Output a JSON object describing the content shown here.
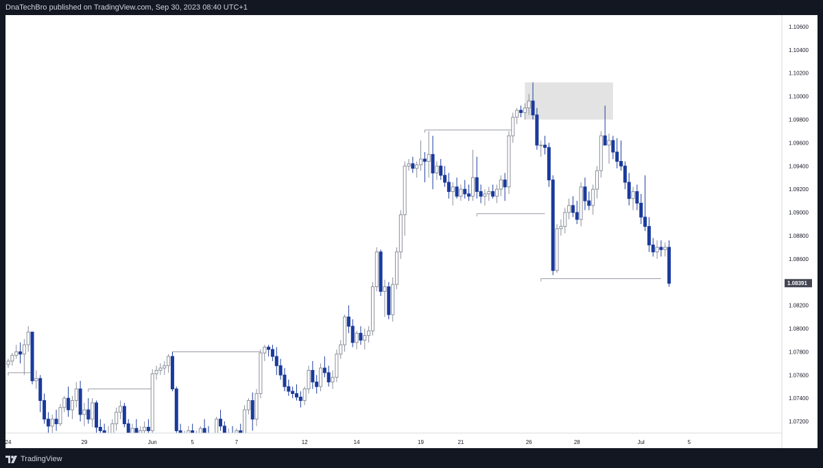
{
  "header": {
    "title": "DnaTechBro published on TradingView.com, Sep 30, 2023 08:40 UTC+1"
  },
  "footer": {
    "brand": "TradingView",
    "brand_icon": "tradingview-logo-icon"
  },
  "colors": {
    "bull_body": "#ffffff",
    "bull_border": "#8a8e99",
    "bear_body": "#1a3a9c",
    "bear_border": "#1a3a9c",
    "level_line": "#9598a1",
    "zone_fill": "#e3e3e3",
    "price_label_bg": "#434651"
  },
  "chart_data": {
    "type": "candlestick",
    "title": "",
    "xlabel": "",
    "ylabel": "",
    "ylim": [
      1.071,
      1.107
    ],
    "grid": false,
    "current_price": "1.08391",
    "y_ticks": [
      "1.10600",
      "1.10400",
      "1.10200",
      "1.10000",
      "1.09800",
      "1.09600",
      "1.09400",
      "1.09200",
      "1.09000",
      "1.08800",
      "1.08600",
      "1.08400",
      "1.08200",
      "1.08000",
      "1.07800",
      "1.07600",
      "1.07400",
      "1.07200"
    ],
    "x_ticks": [
      {
        "label": "24",
        "bar": 0
      },
      {
        "label": "29",
        "bar": 19
      },
      {
        "label": "Jun",
        "bar": 36
      },
      {
        "label": "5",
        "bar": 46
      },
      {
        "label": "7",
        "bar": 57
      },
      {
        "label": "12",
        "bar": 74
      },
      {
        "label": "14",
        "bar": 87
      },
      {
        "label": "19",
        "bar": 103
      },
      {
        "label": "21",
        "bar": 113
      },
      {
        "label": "26",
        "bar": 130
      },
      {
        "label": "28",
        "bar": 142
      },
      {
        "label": "Jul",
        "bar": 158
      },
      {
        "label": "5",
        "bar": 170
      }
    ],
    "candles": [
      [
        1.0769,
        1.0774,
        1.0766,
        1.0772
      ],
      [
        1.0772,
        1.0779,
        1.0768,
        1.0777
      ],
      [
        1.0777,
        1.0786,
        1.0774,
        1.078
      ],
      [
        1.078,
        1.0788,
        1.077,
        1.0778
      ],
      [
        1.0778,
        1.0791,
        1.076,
        1.0786
      ],
      [
        1.0786,
        1.0802,
        1.078,
        1.0797
      ],
      [
        1.0797,
        1.0797,
        1.0752,
        1.0755
      ],
      [
        1.0755,
        1.0764,
        1.0748,
        1.0757
      ],
      [
        1.0757,
        1.076,
        1.0728,
        1.0738
      ],
      [
        1.0738,
        1.0744,
        1.0718,
        1.0722
      ],
      [
        1.0722,
        1.0728,
        1.0708,
        1.0716
      ],
      [
        1.0716,
        1.0726,
        1.071,
        1.0722
      ],
      [
        1.0722,
        1.073,
        1.0712,
        1.0718
      ],
      [
        1.0718,
        1.0735,
        1.0716,
        1.0732
      ],
      [
        1.0732,
        1.0742,
        1.0728,
        1.074
      ],
      [
        1.074,
        1.075,
        1.0724,
        1.073
      ],
      [
        1.073,
        1.0742,
        1.0722,
        1.0738
      ],
      [
        1.0738,
        1.0754,
        1.0732,
        1.0748
      ],
      [
        1.0748,
        1.0755,
        1.072,
        1.0726
      ],
      [
        1.0726,
        1.0736,
        1.0716,
        1.073
      ],
      [
        1.073,
        1.074,
        1.0718,
        1.0722
      ],
      [
        1.0722,
        1.074,
        1.0715,
        1.0736
      ],
      [
        1.0736,
        1.0738,
        1.071,
        1.0715
      ],
      [
        1.0715,
        1.0722,
        1.0705,
        1.0712
      ],
      [
        1.0712,
        1.0718,
        1.07,
        1.0708
      ],
      [
        1.0708,
        1.0716,
        1.0702,
        1.071
      ],
      [
        1.071,
        1.0722,
        1.0706,
        1.0718
      ],
      [
        1.0718,
        1.0732,
        1.0712,
        1.0728
      ],
      [
        1.0728,
        1.0738,
        1.0722,
        1.0733
      ],
      [
        1.0733,
        1.0736,
        1.0715,
        1.0718
      ],
      [
        1.0718,
        1.0722,
        1.0704,
        1.071
      ],
      [
        1.071,
        1.0718,
        1.07,
        1.0714
      ],
      [
        1.0714,
        1.0722,
        1.0706,
        1.0708
      ],
      [
        1.0708,
        1.0716,
        1.07,
        1.0712
      ],
      [
        1.0712,
        1.072,
        1.0704,
        1.0715
      ],
      [
        1.0715,
        1.0722,
        1.0706,
        1.0712
      ],
      [
        1.0712,
        1.0765,
        1.071,
        1.0761
      ],
      [
        1.0761,
        1.0768,
        1.0756,
        1.0764
      ],
      [
        1.0764,
        1.077,
        1.076,
        1.0766
      ],
      [
        1.0766,
        1.0772,
        1.076,
        1.0768
      ],
      [
        1.0768,
        1.0778,
        1.0762,
        1.0776
      ],
      [
        1.0776,
        1.078,
        1.0746,
        1.0748
      ],
      [
        1.0748,
        1.075,
        1.0708,
        1.0712
      ],
      [
        1.0712,
        1.0718,
        1.069,
        1.07
      ],
      [
        1.07,
        1.0712,
        1.0694,
        1.0708
      ],
      [
        1.0708,
        1.0716,
        1.07,
        1.0712
      ],
      [
        1.0712,
        1.0718,
        1.07,
        1.0704
      ],
      [
        1.0704,
        1.0712,
        1.069,
        1.0706
      ],
      [
        1.0706,
        1.0716,
        1.07,
        1.0714
      ],
      [
        1.0714,
        1.0722,
        1.0706,
        1.071
      ],
      [
        1.071,
        1.0716,
        1.0698,
        1.0702
      ],
      [
        1.0702,
        1.071,
        1.0692,
        1.0708
      ],
      [
        1.0708,
        1.0724,
        1.0706,
        1.0722
      ],
      [
        1.0722,
        1.073,
        1.0712,
        1.0716
      ],
      [
        1.0716,
        1.072,
        1.0702,
        1.0706
      ],
      [
        1.0706,
        1.0714,
        1.0696,
        1.071
      ],
      [
        1.071,
        1.0716,
        1.07,
        1.0704
      ],
      [
        1.0704,
        1.0714,
        1.0696,
        1.0712
      ],
      [
        1.0712,
        1.0718,
        1.0702,
        1.0708
      ],
      [
        1.0708,
        1.0734,
        1.0706,
        1.073
      ],
      [
        1.073,
        1.074,
        1.0726,
        1.0738
      ],
      [
        1.0738,
        1.0745,
        1.0712,
        1.0722
      ],
      [
        1.0722,
        1.0748,
        1.0716,
        1.0744
      ],
      [
        1.0744,
        1.0782,
        1.074,
        1.0779
      ],
      [
        1.0779,
        1.0786,
        1.0772,
        1.0784
      ],
      [
        1.0784,
        1.0786,
        1.0776,
        1.0782
      ],
      [
        1.0782,
        1.0786,
        1.0772,
        1.0776
      ],
      [
        1.0776,
        1.0784,
        1.076,
        1.0768
      ],
      [
        1.0768,
        1.0774,
        1.0756,
        1.076
      ],
      [
        1.076,
        1.0766,
        1.0746,
        1.075
      ],
      [
        1.075,
        1.0756,
        1.0742,
        1.0746
      ],
      [
        1.0746,
        1.075,
        1.074,
        1.0744
      ],
      [
        1.0744,
        1.0752,
        1.0738,
        1.0741
      ],
      [
        1.0741,
        1.0746,
        1.0732,
        1.0738
      ],
      [
        1.0738,
        1.075,
        1.0734,
        1.0748
      ],
      [
        1.0748,
        1.0768,
        1.0744,
        1.0764
      ],
      [
        1.0764,
        1.0772,
        1.0748,
        1.0754
      ],
      [
        1.0754,
        1.076,
        1.0744,
        1.075
      ],
      [
        1.075,
        1.077,
        1.0746,
        1.0766
      ],
      [
        1.0766,
        1.0776,
        1.0758,
        1.0762
      ],
      [
        1.0762,
        1.0768,
        1.075,
        1.0754
      ],
      [
        1.0754,
        1.0764,
        1.0748,
        1.0758
      ],
      [
        1.0758,
        1.0782,
        1.0754,
        1.0778
      ],
      [
        1.0778,
        1.079,
        1.0774,
        1.0786
      ],
      [
        1.0786,
        1.0812,
        1.078,
        1.081
      ],
      [
        1.081,
        1.082,
        1.0796,
        1.0802
      ],
      [
        1.0802,
        1.0808,
        1.0784,
        1.0788
      ],
      [
        1.0788,
        1.0798,
        1.0782,
        1.0796
      ],
      [
        1.0796,
        1.0802,
        1.0786,
        1.079
      ],
      [
        1.079,
        1.08,
        1.0782,
        1.0794
      ],
      [
        1.0794,
        1.0802,
        1.0788,
        1.0798
      ],
      [
        1.0798,
        1.084,
        1.0794,
        1.0836
      ],
      [
        1.0836,
        1.087,
        1.0832,
        1.0866
      ],
      [
        1.0866,
        1.0868,
        1.0828,
        1.0832
      ],
      [
        1.0832,
        1.0842,
        1.081,
        1.0836
      ],
      [
        1.0836,
        1.084,
        1.0808,
        1.0812
      ],
      [
        1.0812,
        1.0844,
        1.0806,
        1.0838
      ],
      [
        1.0838,
        1.087,
        1.0834,
        1.0866
      ],
      [
        1.0866,
        1.0902,
        1.086,
        1.0898
      ],
      [
        1.0898,
        1.0944,
        1.088,
        1.094
      ],
      [
        1.094,
        1.0946,
        1.0936,
        1.0942
      ],
      [
        1.0942,
        1.0948,
        1.0934,
        1.0938
      ],
      [
        1.0938,
        1.0944,
        1.093,
        1.0941
      ],
      [
        1.0941,
        1.0962,
        1.0936,
        1.0946
      ],
      [
        1.0946,
        1.0952,
        1.0926,
        1.0944
      ],
      [
        1.0944,
        1.097,
        1.093,
        1.095
      ],
      [
        1.095,
        1.0966,
        1.092,
        1.0934
      ],
      [
        1.0934,
        1.0944,
        1.0928,
        1.094
      ],
      [
        1.094,
        1.0946,
        1.0928,
        1.0932
      ],
      [
        1.0932,
        1.094,
        1.0922,
        1.0926
      ],
      [
        1.0926,
        1.0934,
        1.0912,
        1.0918
      ],
      [
        1.0918,
        1.0926,
        1.0906,
        1.0922
      ],
      [
        1.0922,
        1.093,
        1.0912,
        1.0914
      ],
      [
        1.0914,
        1.0924,
        1.091,
        1.092
      ],
      [
        1.092,
        1.0928,
        1.0912,
        1.0916
      ],
      [
        1.0916,
        1.0924,
        1.091,
        1.0914
      ],
      [
        1.0914,
        1.0954,
        1.091,
        1.093
      ],
      [
        1.093,
        1.0948,
        1.0912,
        1.0918
      ],
      [
        1.0918,
        1.0924,
        1.0908,
        1.0914
      ],
      [
        1.0914,
        1.092,
        1.0906,
        1.0916
      ],
      [
        1.0916,
        1.0922,
        1.091,
        1.0918
      ],
      [
        1.0918,
        1.0924,
        1.0912,
        1.0914
      ],
      [
        1.0914,
        1.0924,
        1.0908,
        1.092
      ],
      [
        1.092,
        1.0932,
        1.0914,
        1.0928
      ],
      [
        1.0928,
        1.0934,
        1.091,
        1.0922
      ],
      [
        1.0922,
        1.097,
        1.0916,
        1.0966
      ],
      [
        1.0966,
        1.0986,
        1.096,
        1.0982
      ],
      [
        1.0982,
        1.099,
        1.0976,
        1.0988
      ],
      [
        1.0988,
        1.0992,
        1.0982,
        1.0986
      ],
      [
        1.0986,
        1.0994,
        1.098,
        1.099
      ],
      [
        1.099,
        1.1002,
        1.0984,
        1.0996
      ],
      [
        1.0996,
        1.1012,
        1.098,
        1.0984
      ],
      [
        1.0984,
        1.099,
        1.0954,
        1.0958
      ],
      [
        1.0958,
        1.0962,
        1.0948,
        1.0958
      ],
      [
        1.0958,
        1.0966,
        1.095,
        1.0956
      ],
      [
        1.0956,
        1.096,
        1.0922,
        1.0928
      ],
      [
        1.0928,
        1.0932,
        1.0846,
        1.085
      ],
      [
        1.085,
        1.089,
        1.0848,
        1.0886
      ],
      [
        1.0886,
        1.0894,
        1.088,
        1.0888
      ],
      [
        1.0888,
        1.0904,
        1.0882,
        1.09
      ],
      [
        1.09,
        1.0912,
        1.0894,
        1.0906
      ],
      [
        1.0906,
        1.0914,
        1.0896,
        1.09
      ],
      [
        1.09,
        1.091,
        1.089,
        1.0894
      ],
      [
        1.0894,
        1.0926,
        1.0888,
        1.0922
      ],
      [
        1.0922,
        1.093,
        1.0902,
        1.091
      ],
      [
        1.091,
        1.0918,
        1.0902,
        1.0906
      ],
      [
        1.0906,
        1.0924,
        1.0898,
        1.092
      ],
      [
        1.092,
        1.094,
        1.0912,
        1.0936
      ],
      [
        1.0936,
        1.097,
        1.093,
        1.0966
      ],
      [
        1.0966,
        1.0992,
        1.096,
        1.0958
      ],
      [
        1.0958,
        1.0968,
        1.0942,
        1.0962
      ],
      [
        1.0962,
        1.0966,
        1.0946,
        1.0952
      ],
      [
        1.0952,
        1.0964,
        1.0938,
        1.0944
      ],
      [
        1.0944,
        1.0962,
        1.0936,
        1.094
      ],
      [
        1.094,
        1.0944,
        1.092,
        1.0926
      ],
      [
        1.0926,
        1.0934,
        1.0906,
        1.0912
      ],
      [
        1.0912,
        1.0922,
        1.0902,
        1.0918
      ],
      [
        1.0918,
        1.0924,
        1.0902,
        1.0908
      ],
      [
        1.0908,
        1.0916,
        1.089,
        1.0896
      ],
      [
        1.0896,
        1.0932,
        1.0884,
        1.0888
      ],
      [
        1.0888,
        1.0896,
        1.0866,
        1.0872
      ],
      [
        1.0872,
        1.0878,
        1.0862,
        1.0866
      ],
      [
        1.0866,
        1.0876,
        1.086,
        1.087
      ],
      [
        1.087,
        1.0876,
        1.0862,
        1.0868
      ],
      [
        1.0868,
        1.0874,
        1.0862,
        1.087
      ],
      [
        1.087,
        1.0876,
        1.0836,
        1.0839
      ]
    ],
    "levels": [
      {
        "price": 1.0762,
        "from_bar": 0,
        "to_bar": 6
      },
      {
        "price": 1.0748,
        "from_bar": 20,
        "to_bar": 36
      },
      {
        "price": 1.078,
        "from_bar": 41,
        "to_bar": 63
      },
      {
        "price": 1.0971,
        "from_bar": 104,
        "to_bar": 126
      },
      {
        "price": 1.0899,
        "from_bar": 117,
        "to_bar": 134
      },
      {
        "price": 1.0843,
        "from_bar": 133,
        "to_bar": 163
      }
    ],
    "zone": {
      "price_top": 1.1012,
      "price_bottom": 1.098,
      "from_bar": 129,
      "to_bar": 151
    }
  }
}
